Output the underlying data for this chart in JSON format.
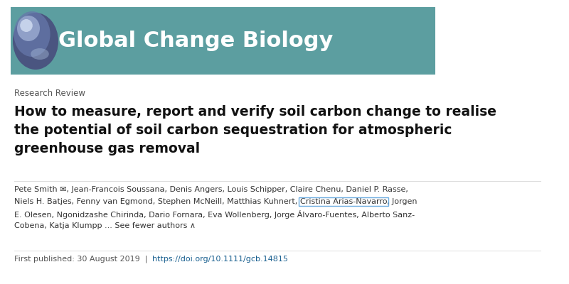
{
  "bg_color": "#ffffff",
  "header_bg_color": "#5c9ea0",
  "header_text": "Global Change Biology",
  "header_text_color": "#ffffff",
  "header_font_size": 22,
  "article_type": "Research Review",
  "article_type_color": "#555555",
  "article_type_fontsize": 8.5,
  "title_line1": "How to measure, report and verify soil carbon change to realise",
  "title_line2": "the potential of soil carbon sequestration for atmospheric",
  "title_line3": "greenhouse gas removal",
  "title_color": "#111111",
  "title_fontsize": 13.5,
  "authors_line1": "Pete Smith ✉, Jean-Francois Soussana, Denis Angers, Louis Schipper, Claire Chenu, Daniel P. Rasse,",
  "authors_line2_before": "Niels H. Batjes, Fenny van Egmond, Stephen McNeill, Matthias Kuhnert, ",
  "authors_line2_highlight": "Cristina Arias-Navarro",
  "authors_line2_after": ", Jorgen",
  "authors_line3": "E. Olesen, Ngonidzashe Chirinda, Dario Fornara, Eva Wollenberg, Jorge Álvaro-Fuentes, Alberto Sanz-",
  "authors_line4": "Cobena, Katja Klumpp ... See fewer authors ∧",
  "authors_color": "#333333",
  "authors_fontsize": 8.0,
  "highlighted_author": "Cristina Arias-Navarro",
  "highlight_box_color": "#6aabe0",
  "footer_label": "First published: 30 August 2019  |  ",
  "footer_doi": "https://doi.org/10.1111/gcb.14815",
  "footer_color": "#555555",
  "footer_doi_color": "#1a6090",
  "footer_fontsize": 8.0,
  "divider_color": "#dddddd"
}
